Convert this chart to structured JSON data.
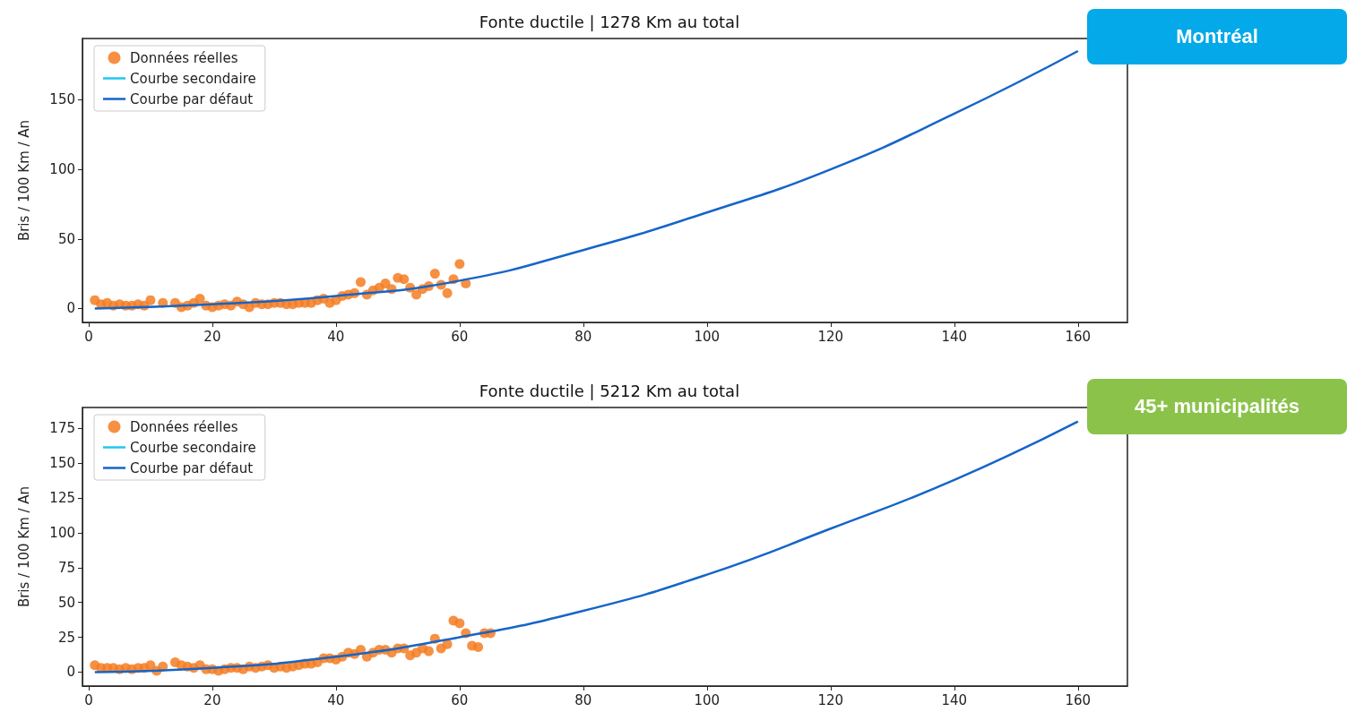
{
  "chart_data": [
    {
      "type": "scatter",
      "title": "Fonte ductile | 1278 Km au total",
      "ylabel": "Bris / 100 Km / An",
      "annotations": [
        "Montréal"
      ],
      "xlim": [
        -1,
        168
      ],
      "xticks": [
        0,
        20,
        40,
        60,
        80,
        100,
        120,
        140,
        160
      ],
      "ylim": [
        -10,
        194
      ],
      "yticks": [
        0,
        50,
        100,
        150
      ],
      "legend": "top left",
      "grid": false,
      "series": [
        {
          "name": "Données réelles",
          "marker": "circle",
          "color": "#f57c22",
          "x": [
            1,
            2,
            3,
            4,
            5,
            6,
            7,
            8,
            9,
            10,
            12,
            14,
            15,
            16,
            17,
            18,
            19,
            20,
            21,
            22,
            23,
            24,
            25,
            26,
            27,
            28,
            29,
            30,
            31,
            32,
            33,
            34,
            35,
            36,
            37,
            38,
            39,
            40,
            41,
            42,
            43,
            44,
            45,
            46,
            47,
            48,
            49,
            50,
            51,
            52,
            53,
            54,
            55,
            56,
            57,
            58,
            59,
            60,
            61
          ],
          "values": [
            6,
            3,
            4,
            2,
            3,
            2,
            2,
            3,
            2,
            6,
            4,
            4,
            1,
            2,
            4,
            7,
            2,
            1,
            2,
            3,
            2,
            5,
            3,
            1,
            4,
            3,
            3,
            4,
            4,
            3,
            3,
            4,
            4,
            4,
            6,
            7,
            4,
            6,
            9,
            10,
            11,
            19,
            10,
            13,
            15,
            18,
            14,
            22,
            21,
            15,
            10,
            14,
            16,
            25,
            17,
            11,
            21,
            32,
            18
          ]
        },
        {
          "name": "Courbe secondaire",
          "type": "line",
          "color": "#1ec8f0"
        },
        {
          "name": "Courbe par défaut",
          "type": "line",
          "color": "#1565c8",
          "x": [
            1,
            20,
            40,
            60,
            80,
            100,
            120,
            140,
            160
          ],
          "values": [
            0,
            3,
            9,
            20,
            42,
            69,
            100,
            140,
            185
          ]
        }
      ]
    },
    {
      "type": "scatter",
      "title": "Fonte ductile | 5212 Km au total",
      "ylabel": "Bris / 100 Km / An",
      "annotations": [
        "45+ municipalités"
      ],
      "xlim": [
        -1,
        168
      ],
      "xticks": [
        0,
        20,
        40,
        60,
        80,
        100,
        120,
        140,
        160
      ],
      "ylim": [
        -10,
        190
      ],
      "yticks": [
        0,
        25,
        50,
        75,
        100,
        125,
        150,
        175
      ],
      "legend": "top left",
      "grid": false,
      "series": [
        {
          "name": "Données réelles",
          "marker": "circle",
          "color": "#f57c22",
          "x": [
            1,
            2,
            3,
            4,
            5,
            6,
            7,
            8,
            9,
            10,
            11,
            12,
            14,
            15,
            16,
            17,
            18,
            19,
            20,
            21,
            22,
            23,
            24,
            25,
            26,
            27,
            28,
            29,
            30,
            31,
            32,
            33,
            34,
            35,
            36,
            37,
            38,
            39,
            40,
            41,
            42,
            43,
            44,
            45,
            46,
            47,
            48,
            49,
            50,
            51,
            52,
            53,
            54,
            55,
            56,
            57,
            58,
            59,
            60,
            61,
            62,
            63,
            64,
            65
          ],
          "values": [
            5,
            3,
            3,
            3,
            2,
            3,
            2,
            3,
            3,
            5,
            1,
            4,
            7,
            5,
            4,
            3,
            5,
            2,
            2,
            1,
            2,
            3,
            3,
            2,
            4,
            3,
            4,
            5,
            3,
            4,
            3,
            4,
            5,
            6,
            6,
            7,
            10,
            10,
            9,
            11,
            14,
            13,
            16,
            11,
            14,
            16,
            16,
            14,
            17,
            17,
            12,
            14,
            17,
            15,
            24,
            17,
            20,
            37,
            35,
            28,
            19,
            18,
            28,
            28
          ]
        },
        {
          "name": "Courbe secondaire",
          "type": "line",
          "color": "#1ec8f0"
        },
        {
          "name": "Courbe par défaut",
          "type": "line",
          "color": "#1565c8",
          "x": [
            1,
            20,
            40,
            60,
            80,
            100,
            120,
            140,
            160
          ],
          "values": [
            0,
            3,
            11,
            25,
            44,
            70,
            103,
            138,
            180
          ]
        }
      ]
    }
  ]
}
